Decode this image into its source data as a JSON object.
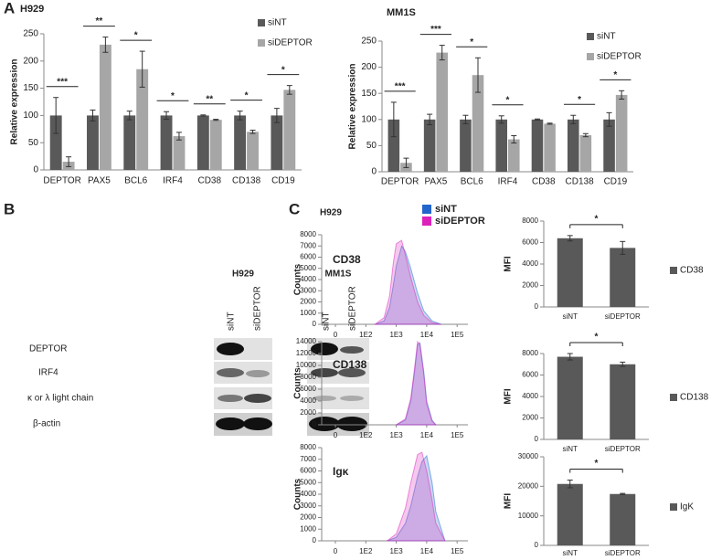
{
  "panel_labels": [
    "A",
    "B",
    "C"
  ],
  "panel_c": {
    "title": "H929"
  },
  "western_blot": {
    "cell_lines": [
      "H929",
      "MM1S"
    ],
    "lanes": [
      "siNT",
      "siDEPTOR"
    ],
    "rows": [
      "DEPTOR",
      "IRF4",
      "κ or λ light chain",
      "β-actin"
    ]
  },
  "chart_data": [
    {
      "type": "bar",
      "title": "H929",
      "ylabel": "Relative expression",
      "categories": [
        "DEPTOR",
        "PAX5",
        "BCL6",
        "IRF4",
        "CD38",
        "CD138",
        "CD19"
      ],
      "series": [
        {
          "name": "siNT",
          "color": "#595959",
          "values": [
            100,
            100,
            100,
            100,
            100,
            100,
            100
          ],
          "errors": [
            33,
            10,
            8,
            7,
            1,
            8,
            13
          ]
        },
        {
          "name": "siDEPTOR",
          "color": "#a6a6a6",
          "values": [
            15,
            230,
            185,
            62,
            92,
            70,
            147
          ],
          "errors": [
            9,
            14,
            33,
            7,
            1,
            3,
            8
          ]
        }
      ],
      "significance": [
        "***",
        "**",
        "*",
        "*",
        "**",
        "*",
        "*"
      ],
      "ylim": [
        0,
        250
      ],
      "yticks": [
        0,
        50,
        100,
        150,
        200,
        250
      ]
    },
    {
      "type": "bar",
      "title": "MM1S",
      "ylabel": "Relative expression",
      "categories": [
        "DEPTOR",
        "PAX5",
        "BCL6",
        "IRF4",
        "CD38",
        "CD138",
        "CD19"
      ],
      "series": [
        {
          "name": "siNT",
          "color": "#595959",
          "values": [
            100,
            100,
            100,
            100,
            100,
            100,
            100
          ],
          "errors": [
            33,
            10,
            8,
            7,
            1,
            8,
            13
          ]
        },
        {
          "name": "siDEPTOR",
          "color": "#a6a6a6",
          "values": [
            17,
            228,
            185,
            62,
            92,
            70,
            147
          ],
          "errors": [
            9,
            14,
            33,
            7,
            1,
            3,
            8
          ]
        }
      ],
      "significance": [
        "***",
        "***",
        "*",
        "*",
        null,
        "*",
        "*"
      ],
      "ylim": [
        0,
        250
      ],
      "yticks": [
        0,
        50,
        100,
        150,
        200,
        250
      ]
    },
    {
      "type": "area",
      "title": "CD38",
      "ylabel": "Counts",
      "x": [
        200,
        400,
        600,
        800,
        1000,
        1500,
        2000,
        3000,
        5000,
        8000,
        15000,
        30000
      ],
      "series": [
        {
          "name": "siNT",
          "color": "#2266cc",
          "values": [
            0,
            300,
            1500,
            3500,
            5200,
            7000,
            6500,
            5000,
            2800,
            1200,
            300,
            0
          ]
        },
        {
          "name": "siDEPTOR",
          "color": "#dd22bb",
          "values": [
            0,
            600,
            2500,
            5500,
            7200,
            7500,
            6200,
            4200,
            2000,
            800,
            150,
            0
          ]
        }
      ],
      "xscale": "log",
      "xlim": [
        0,
        200000
      ],
      "xticks": [
        0,
        {
          "value": 100,
          "label": "1E2"
        },
        {
          "value": 1000,
          "label": "1E3"
        },
        {
          "value": 10000,
          "label": "1E4"
        },
        {
          "value": 100000,
          "label": "1E5"
        }
      ],
      "ylim": [
        0,
        8000
      ],
      "yticks": [
        0,
        1000,
        2000,
        3000,
        4000,
        5000,
        6000,
        7000,
        8000
      ]
    },
    {
      "type": "area",
      "title": "CD138",
      "ylabel": "Counts",
      "x": [
        1000,
        2000,
        3000,
        4000,
        5000,
        6000,
        8000,
        10000,
        15000,
        20000
      ],
      "series": [
        {
          "color": "#2266cc",
          "values": [
            0,
            800,
            4000,
            9000,
            13500,
            13800,
            9000,
            4000,
            800,
            0
          ]
        },
        {
          "color": "#dd22bb",
          "values": [
            0,
            1000,
            4500,
            9500,
            14000,
            13500,
            8500,
            3500,
            600,
            0
          ]
        }
      ],
      "xscale": "log",
      "xlim": [
        0,
        200000
      ],
      "xticks": [
        0,
        {
          "value": 100,
          "label": "1E2"
        },
        {
          "value": 1000,
          "label": "1E3"
        },
        {
          "value": 10000,
          "label": "1E4"
        },
        {
          "value": 100000,
          "label": "1E5"
        }
      ],
      "ylim": [
        0,
        14000
      ],
      "yticks": [
        0,
        2000,
        4000,
        6000,
        8000,
        10000,
        12000,
        14000
      ]
    },
    {
      "type": "area",
      "title": "Igκ",
      "ylabel": "Counts",
      "x": [
        500,
        1000,
        2000,
        3000,
        5000,
        7000,
        10000,
        15000,
        20000,
        40000
      ],
      "series": [
        {
          "color": "#2266cc",
          "values": [
            0,
            300,
            1500,
            3000,
            5500,
            6800,
            7300,
            5000,
            2500,
            0
          ]
        },
        {
          "color": "#dd22bb",
          "values": [
            0,
            600,
            2800,
            5000,
            7400,
            7600,
            6000,
            3500,
            1500,
            0
          ]
        }
      ],
      "xscale": "log",
      "xlim": [
        0,
        200000
      ],
      "xticks": [
        0,
        {
          "value": 100,
          "label": "1E2"
        },
        {
          "value": 1000,
          "label": "1E3"
        },
        {
          "value": 10000,
          "label": "1E4"
        },
        {
          "value": 100000,
          "label": "1E5"
        }
      ],
      "ylim": [
        0,
        8000
      ],
      "yticks": [
        0,
        1000,
        2000,
        3000,
        4000,
        5000,
        6000,
        7000,
        8000
      ]
    },
    {
      "type": "bar",
      "ylabel": "MFI",
      "categories": [
        "siNT",
        "siDEPTOR"
      ],
      "series": [
        {
          "name": "CD38",
          "color": "#595959",
          "values": [
            6400,
            5500
          ],
          "errors": [
            250,
            600
          ]
        }
      ],
      "significance": [
        "*"
      ],
      "ylim": [
        0,
        8000
      ],
      "yticks": [
        0,
        2000,
        4000,
        6000,
        8000
      ]
    },
    {
      "type": "bar",
      "ylabel": "MFI",
      "categories": [
        "siNT",
        "siDEPTOR"
      ],
      "series": [
        {
          "name": "CD138",
          "color": "#595959",
          "values": [
            7700,
            7000
          ],
          "errors": [
            300,
            200
          ]
        }
      ],
      "significance": [
        "*"
      ],
      "ylim": [
        0,
        8000
      ],
      "yticks": [
        0,
        2000,
        4000,
        6000,
        8000
      ]
    },
    {
      "type": "bar",
      "ylabel": "MFI",
      "categories": [
        "siNT",
        "siDEPTOR"
      ],
      "series": [
        {
          "name": "IgK",
          "color": "#595959",
          "values": [
            20800,
            17400
          ],
          "errors": [
            1300,
            200
          ]
        }
      ],
      "significance": [
        "*"
      ],
      "ylim": [
        0,
        30000
      ],
      "yticks": [
        0,
        10000,
        20000,
        30000
      ]
    }
  ]
}
